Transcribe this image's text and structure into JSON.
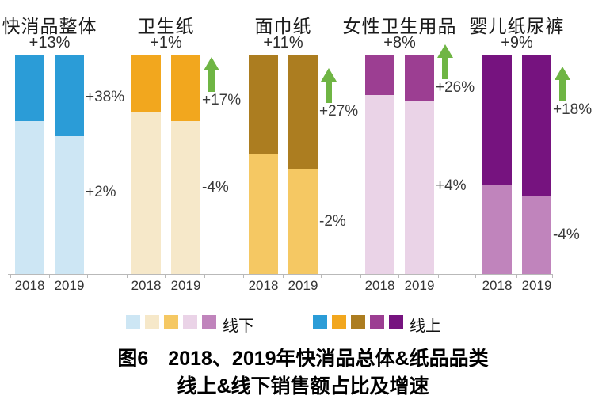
{
  "chart_data": {
    "type": "bar",
    "subtype": "stacked-100-percent",
    "title": "图6　2018、2019年快消品总体&纸品品类 线上&线下销售额占比及增速",
    "years": [
      "2018",
      "2019"
    ],
    "unit": "share of sales (%)",
    "legend_position": "bottom",
    "grid": false,
    "arrow_color": "#6FB544",
    "groups": [
      {
        "name": "快消品整体",
        "total_growth": "+13%",
        "online_growth": "+38%",
        "offline_growth": "+2%",
        "arrow": false,
        "online_color": "#2B9CD7",
        "offline_color": "#CDE6F4",
        "online_pct": {
          "2018": 30,
          "2019": 37
        },
        "offline_pct": {
          "2018": 70,
          "2019": 63
        }
      },
      {
        "name": "卫生纸",
        "total_growth": "+1%",
        "online_growth": "+17%",
        "offline_growth": "-4%",
        "arrow": true,
        "online_color": "#F2A71E",
        "offline_color": "#F6E8C9",
        "online_pct": {
          "2018": 26,
          "2019": 30
        },
        "offline_pct": {
          "2018": 74,
          "2019": 70
        }
      },
      {
        "name": "面巾纸",
        "total_growth": "+11%",
        "online_growth": "+27%",
        "offline_growth": "-2%",
        "arrow": true,
        "online_color": "#AC7D20",
        "offline_color": "#F5C863",
        "online_pct": {
          "2018": 45,
          "2019": 52
        },
        "offline_pct": {
          "2018": 55,
          "2019": 48
        }
      },
      {
        "name": "女性卫生用品",
        "total_growth": "+8%",
        "online_growth": "+26%",
        "offline_growth": "+4%",
        "arrow": true,
        "online_color": "#9C3E92",
        "offline_color": "#EAD3E7",
        "online_pct": {
          "2018": 18,
          "2019": 21
        },
        "offline_pct": {
          "2018": 82,
          "2019": 79
        }
      },
      {
        "name": "婴儿纸尿裤",
        "total_growth": "+9%",
        "online_growth": "+18%",
        "offline_growth": "-4%",
        "arrow": true,
        "online_color": "#76137F",
        "offline_color": "#C084BC",
        "online_pct": {
          "2018": 59,
          "2019": 64
        },
        "offline_pct": {
          "2018": 41,
          "2019": 36
        }
      }
    ]
  },
  "legend": {
    "offline_label": "线下",
    "online_label": "线上"
  },
  "caption": {
    "line1": "图6　2018、2019年快消品总体&纸品品类",
    "line2": "线上&线下销售额占比及增速"
  }
}
